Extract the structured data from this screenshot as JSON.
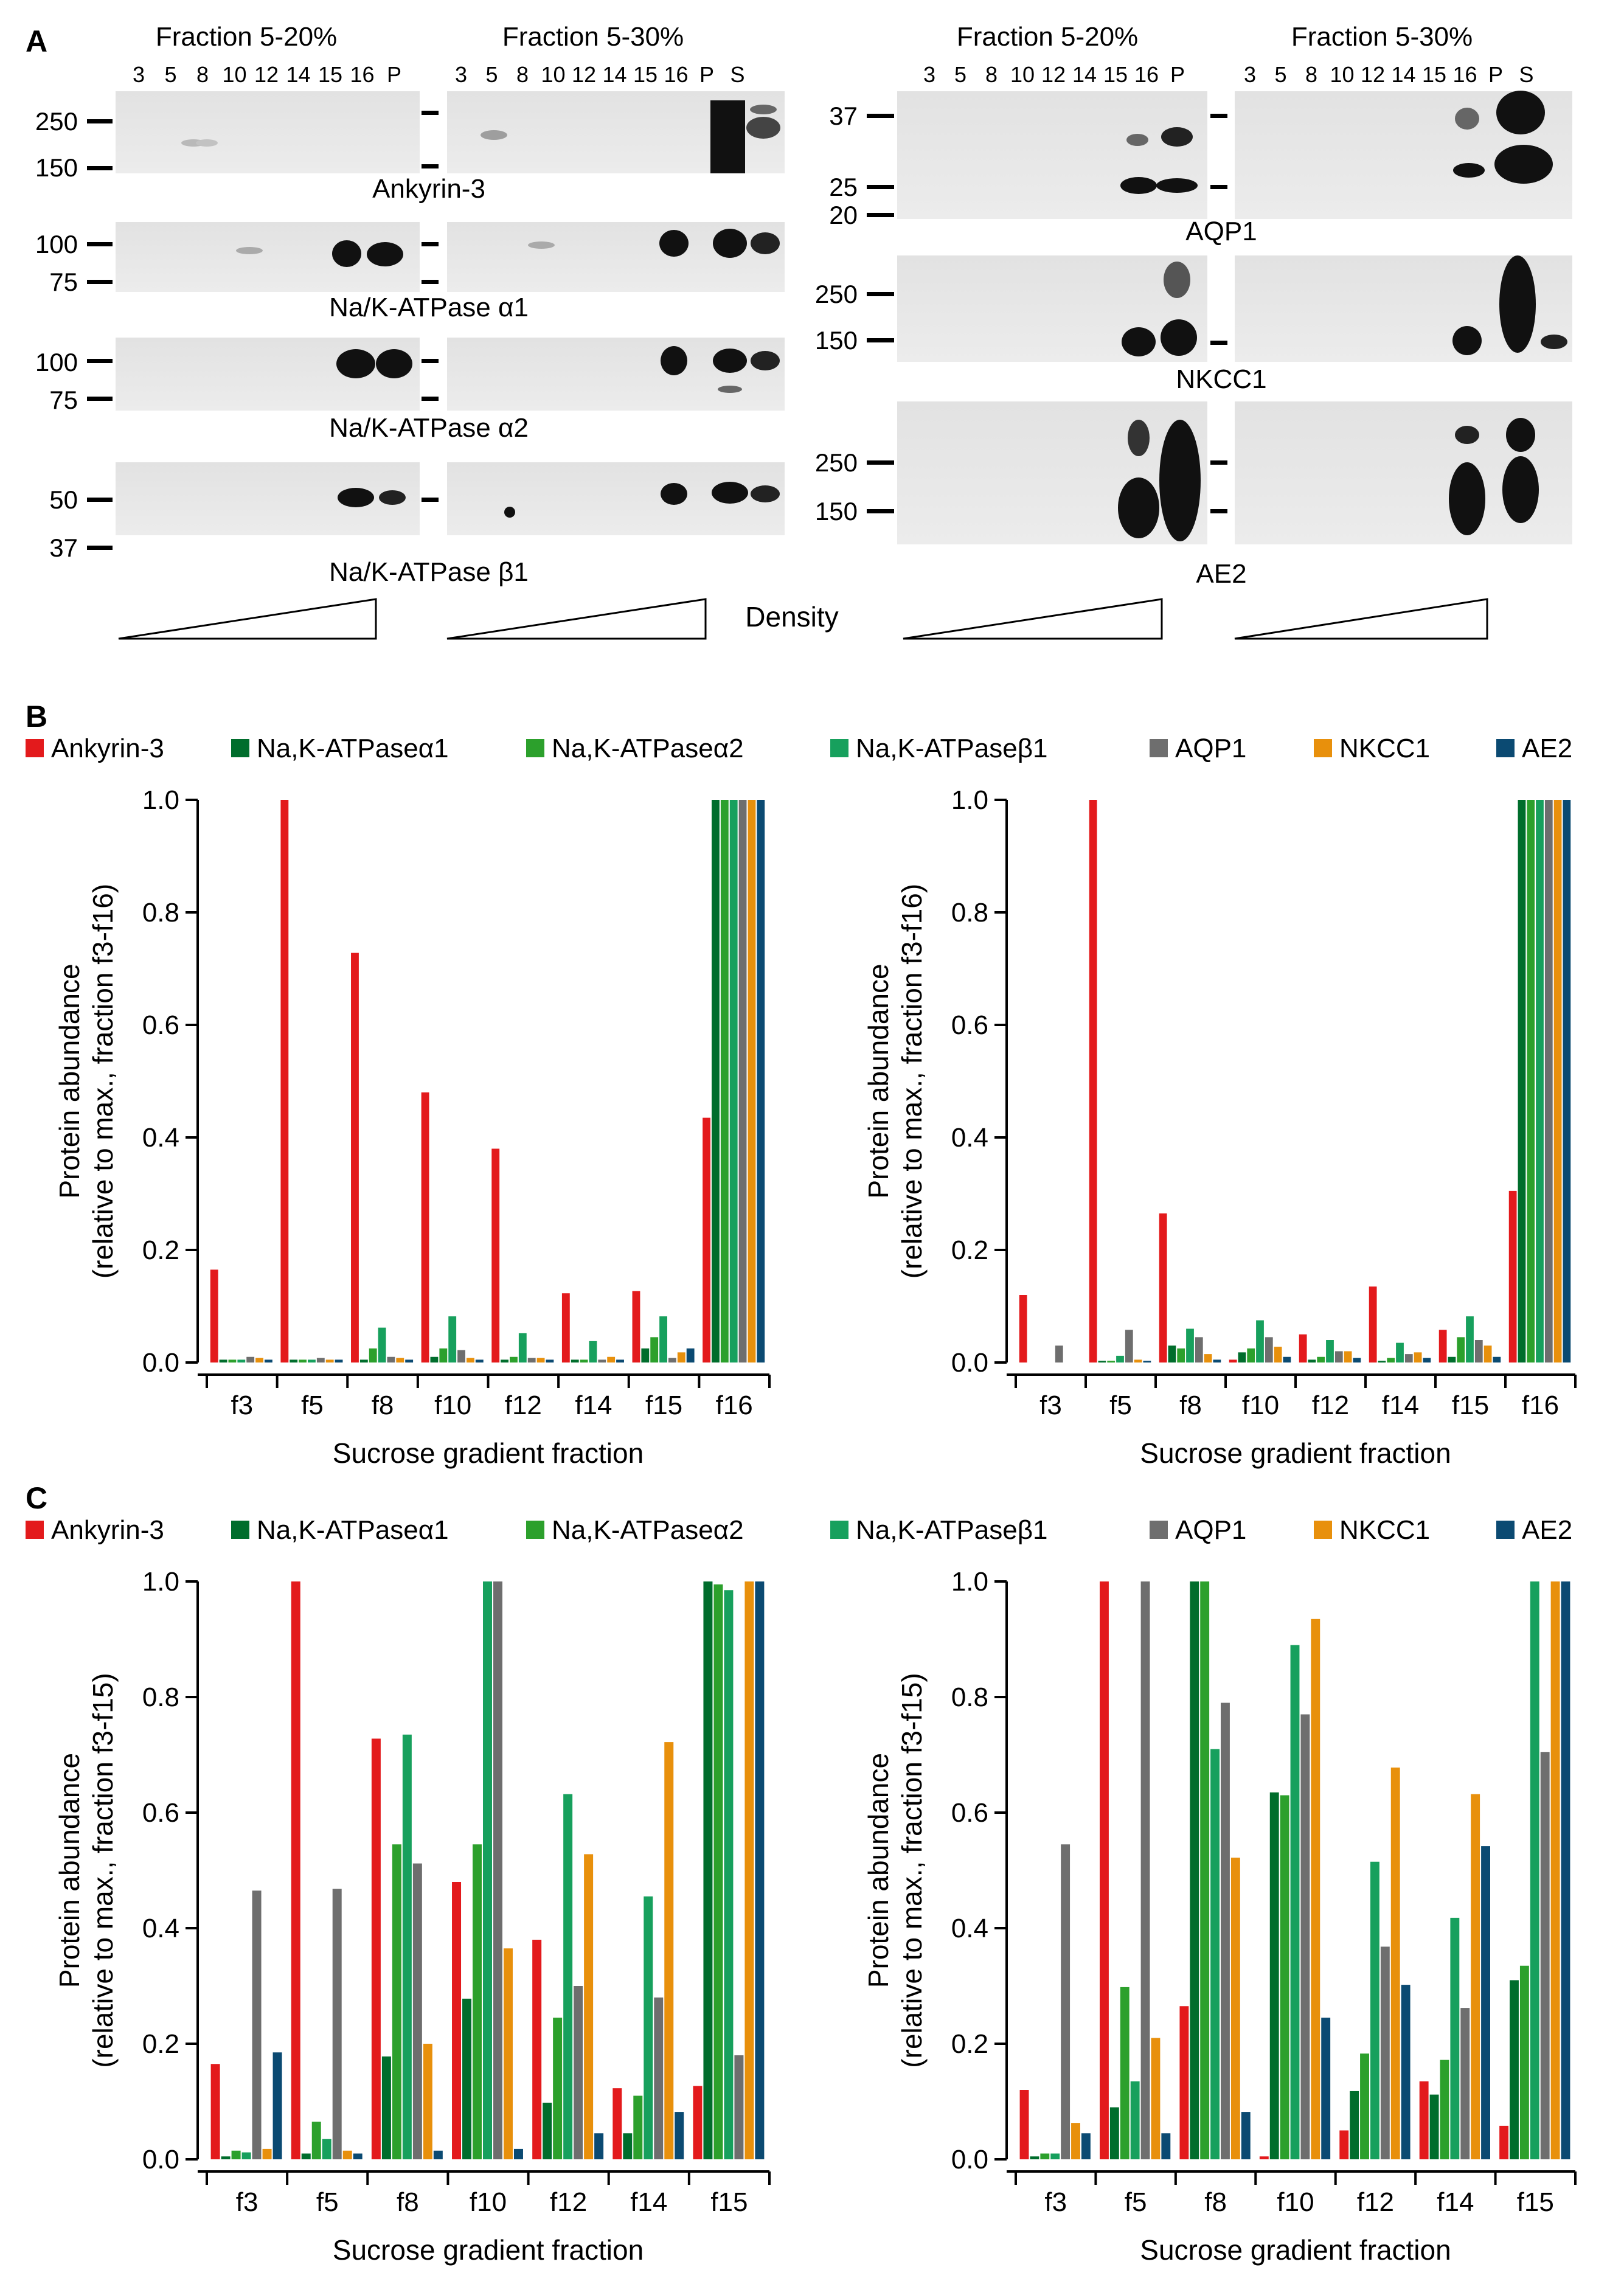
{
  "panel_labels": [
    "A",
    "B",
    "C"
  ],
  "blots": {
    "header_left_a": "Fraction 5-20%",
    "header_left_b": "Fraction 5-30%",
    "header_right_a": "Fraction 5-20%",
    "header_right_b": "Fraction 5-30%",
    "lanes_5_20": [
      "3",
      "5",
      "8",
      "10",
      "12",
      "14",
      "15",
      "16",
      "P"
    ],
    "lanes_5_30": [
      "3",
      "5",
      "8",
      "10",
      "12",
      "14",
      "15",
      "16",
      "P",
      "S"
    ],
    "left_rows": [
      {
        "name": "Ankyrin-3",
        "markers": [
          "250",
          "150"
        ]
      },
      {
        "name": "Na/K-ATPase α1",
        "markers": [
          "100",
          "75"
        ]
      },
      {
        "name": "Na/K-ATPase α2",
        "markers": [
          "100",
          "75"
        ]
      },
      {
        "name": "Na/K-ATPase β1",
        "markers": [
          "50",
          "37"
        ]
      }
    ],
    "right_rows": [
      {
        "name": "AQP1",
        "markers": [
          "37",
          "25",
          "20"
        ]
      },
      {
        "name": "NKCC1",
        "markers": [
          "250",
          "150"
        ]
      },
      {
        "name": "AE2",
        "markers": [
          "250",
          "150"
        ]
      }
    ],
    "density_label": "Density"
  },
  "legend": {
    "items": [
      {
        "label": "Ankyrin-3",
        "color": "#e31a1c"
      },
      {
        "label": "Na,K-ATPaseα1",
        "color": "#006d2c"
      },
      {
        "label": "Na,K-ATPaseα2",
        "color": "#2ca02c"
      },
      {
        "label": "Na,K-ATPaseβ1",
        "color": "#17a05d"
      },
      {
        "label": "AQP1",
        "color": "#6e6e6e"
      },
      {
        "label": "NKCC1",
        "color": "#e8900c"
      },
      {
        "label": "AE2",
        "color": "#0b4a72"
      }
    ]
  },
  "chart_data": [
    {
      "panel": "B",
      "type": "bar",
      "categories": [
        "f3",
        "f5",
        "f8",
        "f10",
        "f12",
        "f14",
        "f15",
        "f16"
      ],
      "xlabel": "Sucrose gradient fraction",
      "ylabel": [
        "Protein abundance",
        "(relative to max., fraction f3-f16)"
      ],
      "ylim": [
        0,
        1.0
      ],
      "yticks": [
        "0.0",
        "0.2",
        "0.4",
        "0.6",
        "0.8",
        "1.0"
      ],
      "series": [
        {
          "name": "Ankyrin-3",
          "values": [
            0.165,
            1.0,
            0.728,
            0.48,
            0.38,
            0.123,
            0.127,
            0.435
          ]
        },
        {
          "name": "Na,K-ATPaseα1",
          "values": [
            0.005,
            0.005,
            0.005,
            0.01,
            0.005,
            0.005,
            0.025,
            1.0
          ]
        },
        {
          "name": "Na,K-ATPaseα2",
          "values": [
            0.005,
            0.005,
            0.025,
            0.025,
            0.01,
            0.005,
            0.045,
            1.0
          ]
        },
        {
          "name": "Na,K-ATPaseβ1",
          "values": [
            0.005,
            0.005,
            0.062,
            0.082,
            0.052,
            0.038,
            0.082,
            1.0
          ]
        },
        {
          "name": "AQP1",
          "values": [
            0.01,
            0.008,
            0.01,
            0.022,
            0.008,
            0.005,
            0.008,
            1.0
          ]
        },
        {
          "name": "NKCC1",
          "values": [
            0.008,
            0.005,
            0.008,
            0.008,
            0.008,
            0.01,
            0.018,
            1.0
          ]
        },
        {
          "name": "AE2",
          "values": [
            0.005,
            0.005,
            0.005,
            0.005,
            0.005,
            0.005,
            0.025,
            1.0
          ]
        }
      ]
    },
    {
      "panel": "B2",
      "type": "bar",
      "categories": [
        "f3",
        "f5",
        "f8",
        "f10",
        "f12",
        "f14",
        "f15",
        "f16"
      ],
      "xlabel": "Sucrose gradient fraction",
      "ylabel": [
        "Protein abundance",
        "(relative to max., fraction f3-f16)"
      ],
      "ylim": [
        0,
        1.0
      ],
      "yticks": [
        "0.0",
        "0.2",
        "0.4",
        "0.6",
        "0.8",
        "1.0"
      ],
      "series": [
        {
          "name": "Ankyrin-3",
          "values": [
            0.12,
            1.0,
            0.265,
            0.005,
            0.05,
            0.135,
            0.058,
            0.305
          ]
        },
        {
          "name": "Na,K-ATPaseα1",
          "values": [
            0.0,
            0.003,
            0.03,
            0.018,
            0.005,
            0.003,
            0.01,
            1.0
          ]
        },
        {
          "name": "Na,K-ATPaseα2",
          "values": [
            0.0,
            0.003,
            0.025,
            0.025,
            0.01,
            0.008,
            0.045,
            1.0
          ]
        },
        {
          "name": "Na,K-ATPaseβ1",
          "values": [
            0.0,
            0.012,
            0.06,
            0.075,
            0.04,
            0.035,
            0.082,
            1.0
          ]
        },
        {
          "name": "AQP1",
          "values": [
            0.03,
            0.058,
            0.045,
            0.045,
            0.02,
            0.015,
            0.04,
            1.0
          ]
        },
        {
          "name": "NKCC1",
          "values": [
            0.0,
            0.005,
            0.015,
            0.028,
            0.02,
            0.018,
            0.03,
            1.0
          ]
        },
        {
          "name": "AE2",
          "values": [
            0.0,
            0.003,
            0.005,
            0.01,
            0.008,
            0.008,
            0.01,
            1.0
          ]
        }
      ]
    },
    {
      "panel": "C",
      "type": "bar",
      "categories": [
        "f3",
        "f5",
        "f8",
        "f10",
        "f12",
        "f14",
        "f15"
      ],
      "xlabel": "Sucrose gradient fraction",
      "ylabel": [
        "Protein abundance",
        "(relative to max., fraction f3-f15)"
      ],
      "ylim": [
        0,
        1.0
      ],
      "yticks": [
        "0.0",
        "0.2",
        "0.4",
        "0.6",
        "0.8",
        "1.0"
      ],
      "series": [
        {
          "name": "Ankyrin-3",
          "values": [
            0.165,
            1.0,
            0.728,
            0.48,
            0.38,
            0.123,
            0.127
          ]
        },
        {
          "name": "Na,K-ATPaseα1",
          "values": [
            0.005,
            0.01,
            0.178,
            0.278,
            0.098,
            0.045,
            1.0
          ]
        },
        {
          "name": "Na,K-ATPaseα2",
          "values": [
            0.015,
            0.065,
            0.545,
            0.545,
            0.245,
            0.11,
            0.995
          ]
        },
        {
          "name": "Na,K-ATPaseβ1",
          "values": [
            0.012,
            0.035,
            0.735,
            1.0,
            0.632,
            0.455,
            0.985
          ]
        },
        {
          "name": "AQP1",
          "values": [
            0.465,
            0.468,
            0.512,
            1.0,
            0.3,
            0.28,
            0.18
          ]
        },
        {
          "name": "NKCC1",
          "values": [
            0.018,
            0.015,
            0.2,
            0.365,
            0.528,
            0.722,
            1.0
          ]
        },
        {
          "name": "AE2",
          "values": [
            0.185,
            0.01,
            0.015,
            0.018,
            0.045,
            0.082,
            1.0
          ]
        }
      ]
    },
    {
      "panel": "C2",
      "type": "bar",
      "categories": [
        "f3",
        "f5",
        "f8",
        "f10",
        "f12",
        "f14",
        "f15"
      ],
      "xlabel": "Sucrose gradient fraction",
      "ylabel": [
        "Protein abundance",
        "(relative to max., fraction f3-f15)"
      ],
      "ylim": [
        0,
        1.0
      ],
      "yticks": [
        "0.0",
        "0.2",
        "0.4",
        "0.6",
        "0.8",
        "1.0"
      ],
      "series": [
        {
          "name": "Ankyrin-3",
          "values": [
            0.12,
            1.0,
            0.265,
            0.005,
            0.05,
            0.135,
            0.058
          ]
        },
        {
          "name": "Na,K-ATPaseα1",
          "values": [
            0.005,
            0.09,
            1.0,
            0.635,
            0.118,
            0.112,
            0.31
          ]
        },
        {
          "name": "Na,K-ATPaseα2",
          "values": [
            0.01,
            0.298,
            1.0,
            0.63,
            0.183,
            0.172,
            0.335
          ]
        },
        {
          "name": "Na,K-ATPaseβ1",
          "values": [
            0.01,
            0.135,
            0.71,
            0.89,
            0.515,
            0.418,
            1.0
          ]
        },
        {
          "name": "AQP1",
          "values": [
            0.545,
            1.0,
            0.79,
            0.77,
            0.368,
            0.262,
            0.705
          ]
        },
        {
          "name": "NKCC1",
          "values": [
            0.063,
            0.21,
            0.522,
            0.935,
            0.678,
            0.632,
            1.0
          ]
        },
        {
          "name": "AE2",
          "values": [
            0.045,
            0.045,
            0.082,
            0.245,
            0.302,
            0.542,
            1.0
          ]
        }
      ]
    }
  ]
}
